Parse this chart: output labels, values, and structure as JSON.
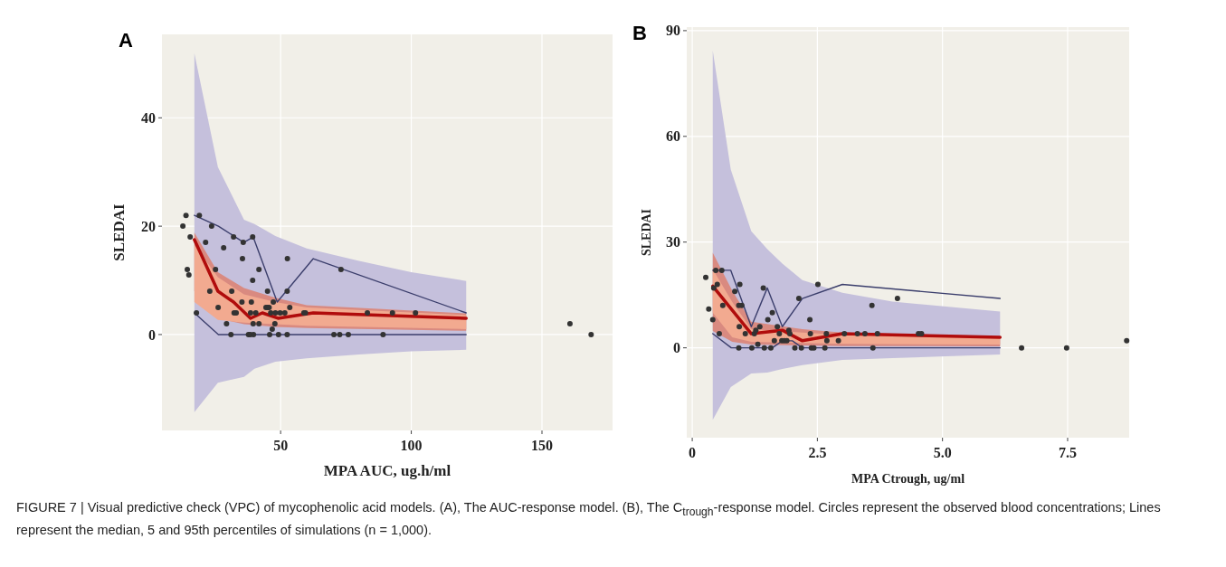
{
  "chart_data": [
    {
      "type": "scatter",
      "title": "A",
      "xlabel": "MPA AUC, ug.h/ml",
      "ylabel": "SLEDAI",
      "xlim": [
        4.6,
        177
      ],
      "ylim": [
        -17.7,
        55.4
      ],
      "xticks": [
        50,
        100,
        150
      ],
      "yticks": [
        0,
        20,
        40
      ],
      "grid": true,
      "annotations": [
        "FIGURE 7 | Visual predictive check (VPC) of mycophenolic acid models. (A), The AUC-response model. (B), The C$_{trough}$-response model. Circles represent the observed blood concentrations; Lines represent the median, 5 and 95th percentiles of simulations (n = 1,000)."
      ],
      "series": [
        {
          "type": "area",
          "color": "#c5c0dc",
          "x": [
            17,
            26,
            36,
            40,
            48,
            60,
            80,
            100,
            121
          ],
          "values": [
            null,
            null,
            null,
            null,
            null,
            null,
            null,
            null,
            null
          ],
          "lower": [
            -14.3,
            -8.9,
            -7.8,
            -6.3,
            -5,
            -4.4,
            -3.7,
            -3.1,
            -2.8
          ],
          "upper": [
            51.9,
            30.9,
            21.2,
            20.4,
            18.2,
            15.9,
            13.6,
            11.5,
            9.9
          ]
        },
        {
          "type": "area",
          "color": "#d98a80",
          "x": [
            17,
            26,
            36,
            48,
            60,
            121
          ],
          "values": [
            null,
            null,
            null,
            null,
            null,
            null
          ],
          "lower": [
            8,
            3,
            1.9,
            1.4,
            1.2,
            0.7
          ],
          "upper": [
            18.8,
            11.5,
            8.6,
            6.8,
            5.4,
            3.9
          ]
        },
        {
          "type": "area",
          "color": "#f2aa90",
          "x": [
            17,
            26,
            36,
            48,
            60,
            121
          ],
          "values": [
            null,
            null,
            null,
            null,
            null,
            null
          ],
          "lower": [
            6,
            2.7,
            2.2,
            1.9,
            1.6,
            1
          ],
          "upper": [
            16.5,
            10.6,
            7.4,
            6,
            5,
            3.6
          ]
        },
        {
          "type": "line",
          "color": "#b00c0c",
          "x": [
            17,
            26,
            32,
            38.5,
            43,
            49,
            62.5,
            121
          ],
          "values": [
            17.5,
            8,
            6,
            3,
            4,
            3,
            4,
            3
          ]
        },
        {
          "type": "line",
          "color": "#3b3e6c",
          "x": [
            17,
            26.2,
            35.9,
            39.5,
            48.7,
            62.5,
            121
          ],
          "values": [
            22,
            20,
            17,
            18,
            6,
            14,
            4
          ]
        },
        {
          "type": "line",
          "color": "#3b3e6c",
          "x": [
            17,
            26.2,
            121
          ],
          "values": [
            4,
            0,
            0
          ]
        },
        {
          "color": "#333333",
          "x": [
            12.6,
            13.8,
            14.3,
            14.9,
            15.4,
            17.8,
            18.9,
            21.3,
            22.9,
            23.6,
            25.1,
            26.1,
            28.2,
            29.3,
            31,
            31.3,
            32,
            32.2,
            33,
            35.2,
            35.4,
            35.7,
            37.7,
            38.4,
            38.5,
            38.8,
            39.3,
            39.3,
            39.5,
            39.6,
            40.5,
            41.7,
            41.7,
            45,
            44.4,
            45,
            45.6,
            45.8,
            46.2,
            46.8,
            47.2,
            47.8,
            48,
            49.2,
            49.8,
            51.6,
            52.5,
            52.5,
            52.6,
            53.5,
            58.9,
            59.5,
            70.4,
            72.6,
            73.1,
            75.9,
            83.2,
            89.2,
            92.8,
            101.6,
            160.7,
            168.8
          ],
          "values": [
            20,
            22,
            12,
            11,
            18,
            4,
            22,
            17,
            8,
            20,
            12,
            5,
            16,
            2,
            0,
            8,
            18,
            4,
            4,
            6,
            14,
            17,
            0,
            0,
            4,
            6,
            18,
            10,
            2,
            0,
            4,
            2,
            12,
            8,
            5,
            5,
            5,
            0,
            4,
            1,
            6,
            2,
            4,
            0,
            4,
            4,
            0,
            8,
            14,
            5,
            4,
            4,
            0,
            0,
            12,
            0,
            4,
            0,
            4,
            4,
            2,
            0
          ]
        }
      ]
    },
    {
      "type": "scatter",
      "title": "B",
      "xlabel": "MPA Ctrough, ug/ml",
      "ylabel": "SLEDAI",
      "xlim": [
        -0.11,
        8.73
      ],
      "ylim": [
        -25.5,
        91
      ],
      "xticks": [
        0,
        2.5,
        {
          "value": 5,
          "label": "5.0"
        },
        7.5
      ],
      "yticks": [
        0,
        30,
        60,
        90
      ],
      "grid": true,
      "series": [
        {
          "type": "area",
          "color": "#c5c0dc",
          "x": [
            0.41,
            0.77,
            1.18,
            1.5,
            1.8,
            2.2,
            3,
            4,
            6.15
          ],
          "values": [
            null,
            null,
            null,
            null,
            null,
            null,
            null,
            null,
            null
          ],
          "lower": [
            -20.4,
            -11.1,
            -7.3,
            -7,
            -6,
            -4.9,
            -3.4,
            -2.9,
            -1.9
          ],
          "upper": [
            84.3,
            50.6,
            33.1,
            28,
            23.9,
            19.2,
            15.6,
            13.1,
            10.3
          ]
        },
        {
          "type": "area",
          "color": "#d98a80",
          "x": [
            0.41,
            0.8,
            1.18,
            2.2,
            3,
            6.15
          ],
          "values": [
            null,
            null,
            null,
            null,
            null,
            null
          ],
          "lower": [
            4.8,
            1.7,
            0.9,
            0.7,
            0.5,
            0.4
          ],
          "upper": [
            27,
            16.2,
            7.4,
            5.3,
            4.3,
            3.3
          ]
        },
        {
          "type": "area",
          "color": "#f2aa90",
          "x": [
            0.41,
            0.8,
            1.18,
            2.2,
            3,
            6.15
          ],
          "values": [
            null,
            null,
            null,
            null,
            null,
            null
          ],
          "lower": [
            10,
            3,
            1.7,
            1.4,
            1.1,
            0.9
          ],
          "upper": [
            22.3,
            13,
            5.3,
            4.3,
            3.6,
            2.8
          ]
        },
        {
          "type": "line",
          "color": "#b00c0c",
          "x": [
            0.41,
            1.18,
            1.8,
            2.2,
            3,
            6.15
          ],
          "values": [
            17.5,
            4,
            5,
            2,
            4,
            3
          ]
        },
        {
          "type": "line",
          "color": "#3b3e6c",
          "x": [
            0.41,
            0.77,
            1.18,
            1.5,
            1.8,
            2.2,
            3,
            6.15
          ],
          "values": [
            22,
            22,
            6,
            17,
            6,
            14,
            18,
            14
          ]
        },
        {
          "type": "line",
          "color": "#3b3e6c",
          "x": [
            0.41,
            0.78,
            1.6,
            1.8,
            2,
            2.2,
            6.15
          ],
          "values": [
            4,
            0,
            0,
            2,
            2,
            0,
            0
          ]
        },
        {
          "color": "#333333",
          "x": [
            0.27,
            0.33,
            0.41,
            0.43,
            0.47,
            0.5,
            0.54,
            0.59,
            0.61,
            0.85,
            0.93,
            0.93,
            0.95,
            0.94,
            0.99,
            1.06,
            1.19,
            1.24,
            1.27,
            1.31,
            1.35,
            1.42,
            1.44,
            1.51,
            1.57,
            1.6,
            1.64,
            1.7,
            1.74,
            1.79,
            1.84,
            1.89,
            1.93,
            1.95,
            2.05,
            2.13,
            2.18,
            2.35,
            2.36,
            2.38,
            2.43,
            2.51,
            2.65,
            2.68,
            2.69,
            2.92,
            3.04,
            3.3,
            3.45,
            3.59,
            3.61,
            3.7,
            4.1,
            4.52,
            4.58,
            6.58,
            7.48,
            8.68
          ],
          "values": [
            20,
            11,
            8,
            17,
            22,
            18,
            4,
            22,
            12,
            16,
            0,
            12,
            18,
            6,
            12,
            4,
            0,
            4,
            5,
            1,
            6,
            17,
            0,
            8,
            0,
            10,
            2,
            6,
            4,
            2,
            2,
            2,
            5,
            4,
            0,
            14,
            0,
            8,
            4,
            0,
            0,
            18,
            0,
            4,
            2,
            2,
            4,
            4,
            4,
            12,
            0,
            4,
            14,
            4,
            4,
            0,
            0,
            2
          ]
        }
      ]
    }
  ]
}
